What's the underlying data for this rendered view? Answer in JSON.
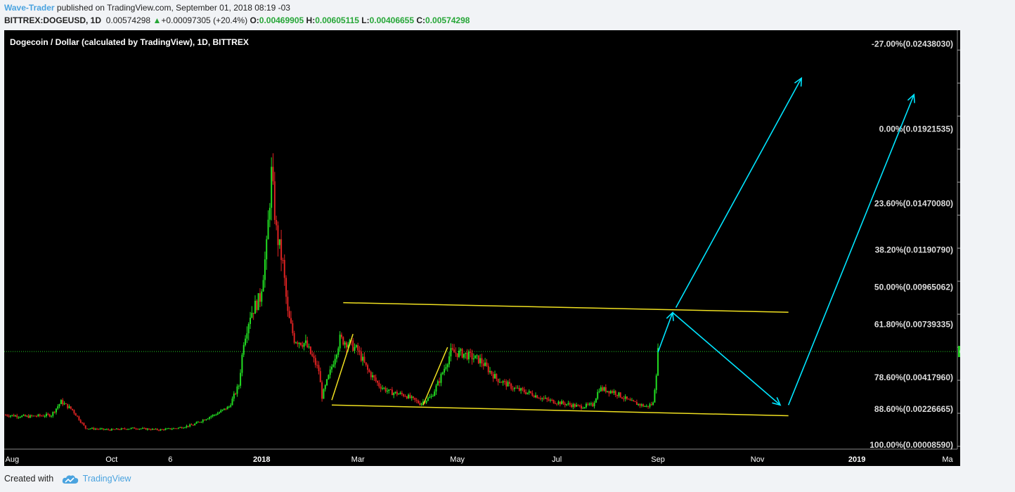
{
  "header": {
    "author": "Wave-Trader",
    "published": " published on TradingView.com, September 01, 2018 08:19 -03",
    "symbol": "BITTREX:DOGEUSD, 1D",
    "last": "0.00574298",
    "change": "+0.00097305 (+20.4%)",
    "o_label": "O:",
    "o": "0.00469905",
    "h_label": "H:",
    "h": "0.00605115",
    "l_label": "L:",
    "l": "0.00406655",
    "c_label": "C:",
    "c": "0.00574298"
  },
  "chart_data": {
    "type": "line",
    "title": "Dogecoin / Dollar (calculated by TradingView), 1D, BITTREX",
    "y_ticks": [
      "0.00000000",
      "0.00200000",
      "0.00400000",
      "0.00600000",
      "0.00800000",
      "0.01000000",
      "0.01200000",
      "0.01400000",
      "0.01600000",
      "0.01800000",
      "0.02000000",
      "0.02200000",
      "0.02400000"
    ],
    "ylim": [
      0,
      0.0252
    ],
    "x_ticks": [
      "Aug",
      "Oct",
      "6",
      "2018",
      "Mar",
      "May",
      "Jul",
      "Sep",
      "Nov",
      "2019",
      "Ma"
    ],
    "x_ticks_bold": [
      "2018",
      "2019"
    ],
    "last_price_label": "0.00574298",
    "fib_levels": [
      {
        "label": "-27.00%(0.02438030)",
        "value": 0.0243803
      },
      {
        "label": "0.00%(0.01921535)",
        "value": 0.01921535
      },
      {
        "label": "23.60%(0.01470080)",
        "value": 0.0147008
      },
      {
        "label": "38.20%(0.01190790)",
        "value": 0.0119079
      },
      {
        "label": "50.00%(0.00965062)",
        "value": 0.00965062
      },
      {
        "label": "61.80%(0.00739335)",
        "value": 0.00739335
      },
      {
        "label": "78.60%(0.00417960)",
        "value": 0.0041796
      },
      {
        "label": "88.60%(0.00226665)",
        "value": 0.00226665
      },
      {
        "label": "100.00%(0.00008590)",
        "value": 8.59e-05
      }
    ],
    "series": [
      {
        "values": [
          [
            "2017-07-28",
            0.0019
          ],
          [
            "2017-08-10",
            0.0018
          ],
          [
            "2017-08-25",
            0.0019
          ],
          [
            "2017-08-31",
            0.0027
          ],
          [
            "2017-09-07",
            0.0022
          ],
          [
            "2017-09-15",
            0.0011
          ],
          [
            "2017-09-30",
            0.001
          ],
          [
            "2017-10-15",
            0.0011
          ],
          [
            "2017-10-30",
            0.001
          ],
          [
            "2017-11-10",
            0.0011
          ],
          [
            "2017-11-20",
            0.0013
          ],
          [
            "2017-11-28",
            0.0017
          ],
          [
            "2017-12-05",
            0.002
          ],
          [
            "2017-12-12",
            0.0024
          ],
          [
            "2017-12-18",
            0.0037
          ],
          [
            "2017-12-21",
            0.0064
          ],
          [
            "2017-12-25",
            0.008
          ],
          [
            "2017-12-31",
            0.009
          ],
          [
            "2018-01-04",
            0.012
          ],
          [
            "2018-01-07",
            0.0165
          ],
          [
            "2018-01-10",
            0.013
          ],
          [
            "2018-01-14",
            0.011
          ],
          [
            "2018-01-17",
            0.008
          ],
          [
            "2018-01-21",
            0.0065
          ],
          [
            "2018-01-28",
            0.0062
          ],
          [
            "2018-02-05",
            0.0046
          ],
          [
            "2018-02-07",
            0.003
          ],
          [
            "2018-02-12",
            0.0045
          ],
          [
            "2018-02-18",
            0.0065
          ],
          [
            "2018-02-24",
            0.0062
          ],
          [
            "2018-03-01",
            0.0058
          ],
          [
            "2018-03-07",
            0.0046
          ],
          [
            "2018-03-14",
            0.0037
          ],
          [
            "2018-03-20",
            0.0033
          ],
          [
            "2018-03-30",
            0.0031
          ],
          [
            "2018-04-08",
            0.0026
          ],
          [
            "2018-04-15",
            0.003
          ],
          [
            "2018-04-20",
            0.004
          ],
          [
            "2018-04-27",
            0.0057
          ],
          [
            "2018-05-05",
            0.0056
          ],
          [
            "2018-05-15",
            0.0052
          ],
          [
            "2018-05-25",
            0.0041
          ],
          [
            "2018-06-05",
            0.0035
          ],
          [
            "2018-06-15",
            0.0032
          ],
          [
            "2018-06-25",
            0.0028
          ],
          [
            "2018-07-05",
            0.0026
          ],
          [
            "2018-07-15",
            0.0024
          ],
          [
            "2018-07-23",
            0.0025
          ],
          [
            "2018-07-27",
            0.0035
          ],
          [
            "2018-08-05",
            0.0033
          ],
          [
            "2018-08-15",
            0.0027
          ],
          [
            "2018-08-25",
            0.0024
          ],
          [
            "2018-08-29",
            0.0026
          ],
          [
            "2018-08-31",
            0.0045
          ],
          [
            "2018-09-01",
            0.00574298
          ]
        ]
      }
    ],
    "channel": [
      {
        "from": [
          "2018-02-20",
          0.0087
        ],
        "to": [
          "2018-11-20",
          0.00812
        ],
        "color": "#f0e020"
      },
      {
        "from": [
          "2018-02-13",
          0.0025
        ],
        "to": [
          "2018-11-20",
          0.00185
        ],
        "color": "#f0e020"
      }
    ],
    "flag_lines": [
      {
        "from": [
          "2018-02-13",
          0.0028
        ],
        "to": [
          "2018-02-26",
          0.0068
        ],
        "color": "#f0e020"
      },
      {
        "from": [
          "2018-04-10",
          0.0025
        ],
        "to": [
          "2018-04-25",
          0.006
        ],
        "color": "#f0e020"
      }
    ],
    "projection_arrows": [
      {
        "from": [
          "2018-09-01",
          0.0057
        ],
        "to": [
          "2018-09-10",
          0.0081
        ],
        "color": "#00e5ff"
      },
      {
        "from": [
          "2018-09-10",
          0.0081
        ],
        "to": [
          "2018-11-15",
          0.0025
        ],
        "color": "#00e5ff"
      },
      {
        "from": [
          "2018-11-20",
          0.0025
        ],
        "to": [
          "2019-02-05",
          0.0213
        ],
        "color": "#00e5ff"
      },
      {
        "from": [
          "2018-09-12",
          0.0084
        ],
        "to": [
          "2018-11-28",
          0.0223
        ],
        "color": "#00e5ff"
      }
    ],
    "colors": {
      "bg": "#000000",
      "up": "#22dd22",
      "down": "#dd2222",
      "axis_text": "#ffffff",
      "last_price": "#22cc22"
    }
  },
  "footer": {
    "created": "Created with",
    "brand": "TradingView"
  }
}
